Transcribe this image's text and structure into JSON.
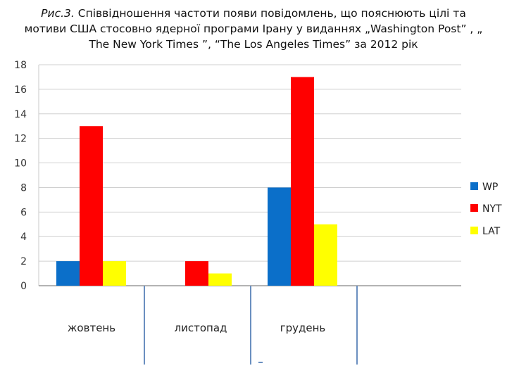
{
  "caption": {
    "prefix": "Рис.3.",
    "text": " Співвідношення частоти появи повідомлень, що пояснюють цілі та мотиви США стосовно ядерної програми Ірану у виданнях „Washington Post” , „ The New York Times ”, “The Los Angeles Times” за 2012 рік"
  },
  "chart_data": {
    "type": "bar",
    "categories": [
      "жовтень",
      "листопад",
      "грудень"
    ],
    "series": [
      {
        "name": "WP",
        "color": "#0b6fc9",
        "values": [
          2,
          0,
          8
        ]
      },
      {
        "name": "NYT",
        "color": "#ff0000",
        "values": [
          13,
          2,
          17
        ]
      },
      {
        "name": "LAT",
        "color": "#ffff00",
        "values": [
          2,
          1,
          5
        ]
      }
    ],
    "yticks": [
      "0",
      "2",
      "4",
      "6",
      "8",
      "10",
      "12",
      "14",
      "16",
      "18"
    ],
    "ylim": [
      0,
      18
    ],
    "grid": true,
    "legend_position": "right",
    "title": "",
    "xlabel": "",
    "ylabel": ""
  }
}
